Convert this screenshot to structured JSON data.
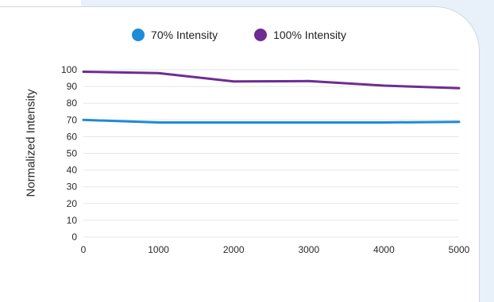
{
  "colors": {
    "page_background": "#e8f1fa",
    "series_70": "#1e8bd6",
    "series_100": "#6f2c91",
    "grid": "#e6e6e6"
  },
  "chart_data": {
    "type": "line",
    "title": "",
    "xlabel": "",
    "ylabel": "Normalized Intensity",
    "xlim": [
      0,
      5000
    ],
    "ylim": [
      0,
      100
    ],
    "x_ticks": [
      0,
      1000,
      2000,
      3000,
      4000,
      5000
    ],
    "y_ticks": [
      0,
      10,
      20,
      30,
      40,
      50,
      60,
      70,
      80,
      90,
      100
    ],
    "grid": true,
    "legend_position": "top-center",
    "series": [
      {
        "name": "70% Intensity",
        "color": "#1e8bd6",
        "x": [
          0,
          1000,
          2000,
          3000,
          4000,
          5000
        ],
        "y": [
          70,
          68.5,
          68.5,
          68.5,
          68.5,
          68.8
        ]
      },
      {
        "name": "100% Intensity",
        "color": "#6f2c91",
        "x": [
          0,
          1000,
          2000,
          3000,
          4000,
          5000
        ],
        "y": [
          98.8,
          98,
          93,
          93.2,
          90.5,
          89
        ]
      }
    ]
  }
}
